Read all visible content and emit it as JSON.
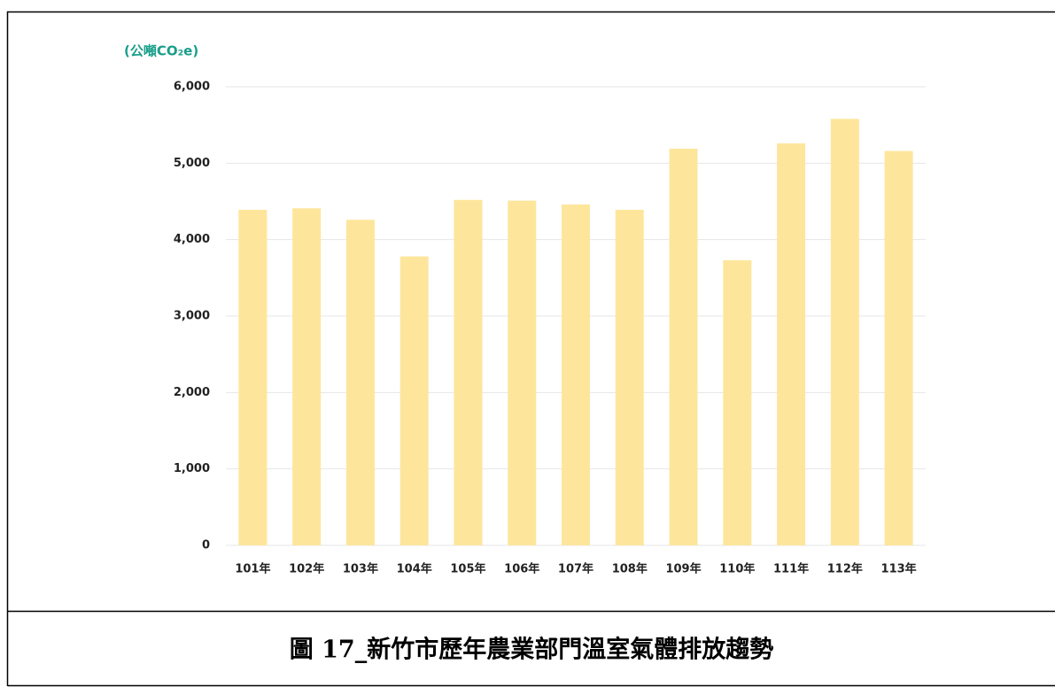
{
  "chart_data": {
    "type": "bar",
    "y_axis_label": "(公噸CO₂e)",
    "caption": "圖 17_新竹市歷年農業部門溫室氣體排放趨勢",
    "categories": [
      "101年",
      "102年",
      "103年",
      "104年",
      "105年",
      "106年",
      "107年",
      "108年",
      "109年",
      "110年",
      "111年",
      "112年",
      "113年"
    ],
    "values": [
      4390,
      4410,
      4260,
      3780,
      4520,
      4510,
      4460,
      4390,
      5190,
      3730,
      5260,
      5580,
      5160
    ],
    "color": "#fde69c",
    "ylim": [
      0,
      6000
    ],
    "yticks": [
      0,
      {
        "value": 1000,
        "label": "1,000"
      },
      {
        "value": 2000,
        "label": "2,000"
      },
      {
        "value": 3000,
        "label": "3,000"
      },
      {
        "value": 4000,
        "label": "4,000"
      },
      {
        "value": 5000,
        "label": "5,000"
      },
      {
        "value": 6000,
        "label": "6,000"
      }
    ],
    "grid": true
  }
}
